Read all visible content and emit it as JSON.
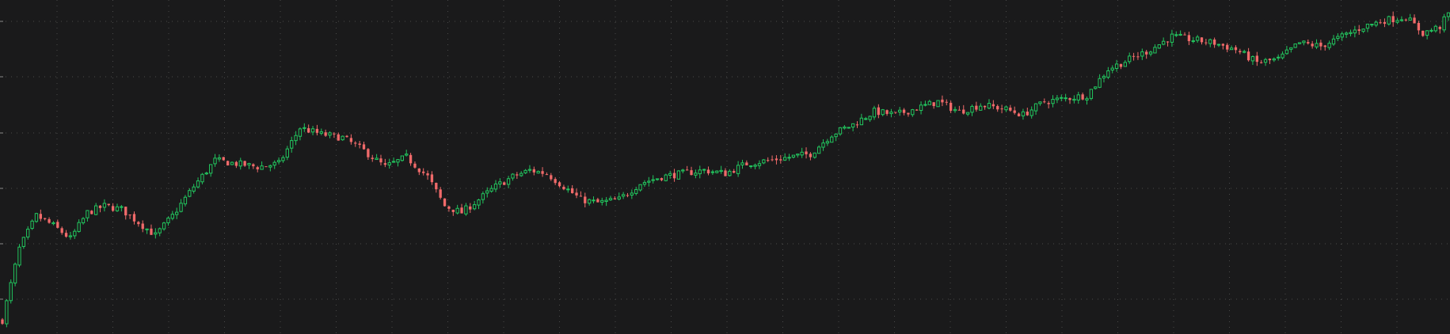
{
  "chart_data": {
    "type": "candlestick",
    "title": "",
    "xlabel": "",
    "ylabel": "",
    "grid": true,
    "legend": "none",
    "ylim": [
      0,
      100
    ],
    "colors": {
      "background": "#1a1a1b",
      "up": "#22c55e",
      "down": "#f06a6a",
      "grid": "#4a4a4a"
    },
    "close_path": [
      [
        0,
        3
      ],
      [
        4,
        25
      ],
      [
        8,
        35
      ],
      [
        12,
        32
      ],
      [
        16,
        28
      ],
      [
        20,
        36
      ],
      [
        24,
        38
      ],
      [
        28,
        37
      ],
      [
        32,
        33
      ],
      [
        36,
        29
      ],
      [
        40,
        35
      ],
      [
        45,
        44
      ],
      [
        50,
        52
      ],
      [
        55,
        51
      ],
      [
        60,
        50
      ],
      [
        65,
        51
      ],
      [
        70,
        62
      ],
      [
        75,
        60
      ],
      [
        80,
        59
      ],
      [
        85,
        55
      ],
      [
        90,
        50
      ],
      [
        95,
        53
      ],
      [
        100,
        47
      ],
      [
        104,
        38
      ],
      [
        108,
        36
      ],
      [
        112,
        40
      ],
      [
        116,
        44
      ],
      [
        120,
        47
      ],
      [
        124,
        49
      ],
      [
        128,
        48
      ],
      [
        132,
        44
      ],
      [
        136,
        40
      ],
      [
        140,
        39
      ],
      [
        145,
        40
      ],
      [
        150,
        45
      ],
      [
        155,
        47
      ],
      [
        160,
        48
      ],
      [
        165,
        49
      ],
      [
        170,
        48
      ],
      [
        175,
        51
      ],
      [
        180,
        52
      ],
      [
        185,
        53
      ],
      [
        190,
        54
      ],
      [
        195,
        60
      ],
      [
        200,
        63
      ],
      [
        205,
        67
      ],
      [
        210,
        66
      ],
      [
        215,
        68
      ],
      [
        220,
        70
      ],
      [
        225,
        67
      ],
      [
        230,
        69
      ],
      [
        235,
        68
      ],
      [
        240,
        66
      ],
      [
        245,
        70
      ],
      [
        250,
        71
      ],
      [
        255,
        72
      ],
      [
        260,
        80
      ],
      [
        265,
        83
      ],
      [
        270,
        86
      ],
      [
        275,
        90
      ],
      [
        280,
        89
      ],
      [
        285,
        88
      ],
      [
        290,
        86
      ],
      [
        295,
        82
      ],
      [
        300,
        83
      ],
      [
        305,
        88
      ],
      [
        310,
        87
      ],
      [
        315,
        90
      ],
      [
        320,
        93
      ],
      [
        325,
        95
      ],
      [
        330,
        96
      ],
      [
        334,
        91
      ],
      [
        338,
        93
      ],
      [
        340,
        97
      ]
    ]
  }
}
